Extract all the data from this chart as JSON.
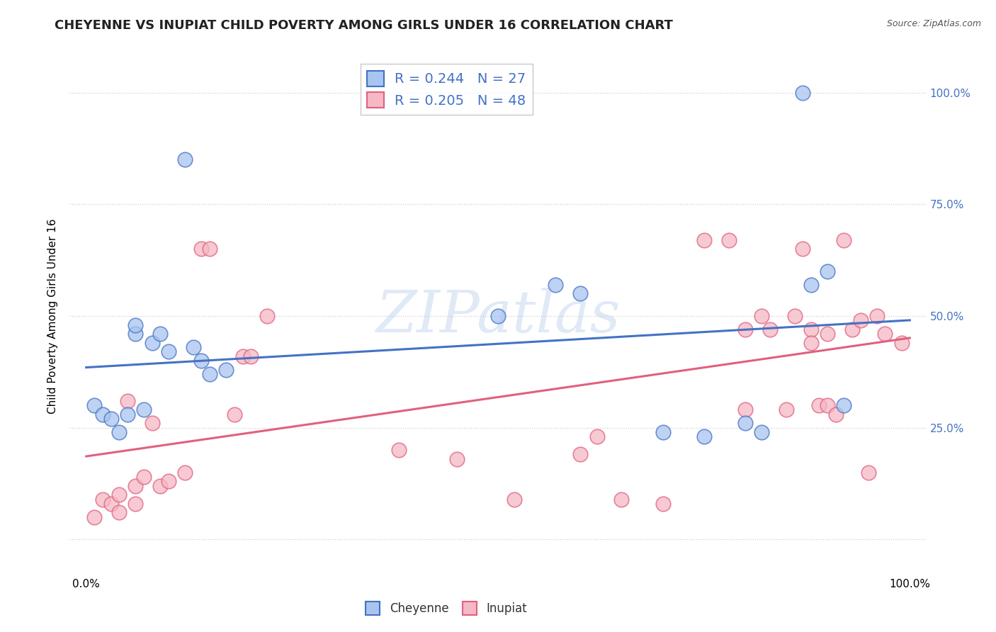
{
  "title": "CHEYENNE VS INUPIAT CHILD POVERTY AMONG GIRLS UNDER 16 CORRELATION CHART",
  "source": "Source: ZipAtlas.com",
  "ylabel": "Child Poverty Among Girls Under 16",
  "watermark": "ZIPatlas",
  "cheyenne_color": "#a8c4f0",
  "cheyenne_color_line": "#4472c4",
  "inupiat_color": "#f5b8c4",
  "inupiat_color_line": "#e06080",
  "cheyenne_R": "0.244",
  "cheyenne_N": "27",
  "inupiat_R": "0.205",
  "inupiat_N": "48",
  "legend_label_cheyenne": "Cheyenne",
  "legend_label_inupiat": "Inupiat",
  "cheyenne_x": [
    0.01,
    0.02,
    0.03,
    0.04,
    0.05,
    0.06,
    0.06,
    0.07,
    0.08,
    0.09,
    0.1,
    0.12,
    0.13,
    0.14,
    0.15,
    0.17,
    0.5,
    0.57,
    0.6,
    0.7,
    0.75,
    0.8,
    0.82,
    0.87,
    0.88,
    0.9,
    0.92
  ],
  "cheyenne_y": [
    0.3,
    0.28,
    0.27,
    0.24,
    0.28,
    0.46,
    0.48,
    0.29,
    0.44,
    0.46,
    0.42,
    0.85,
    0.43,
    0.4,
    0.37,
    0.38,
    0.5,
    0.57,
    0.55,
    0.24,
    0.23,
    0.26,
    0.24,
    1.0,
    0.57,
    0.6,
    0.3
  ],
  "inupiat_x": [
    0.01,
    0.02,
    0.03,
    0.04,
    0.04,
    0.05,
    0.06,
    0.06,
    0.07,
    0.08,
    0.09,
    0.1,
    0.12,
    0.14,
    0.15,
    0.18,
    0.19,
    0.2,
    0.22,
    0.38,
    0.45,
    0.52,
    0.6,
    0.62,
    0.65,
    0.7,
    0.75,
    0.78,
    0.8,
    0.8,
    0.82,
    0.83,
    0.85,
    0.86,
    0.87,
    0.88,
    0.88,
    0.89,
    0.9,
    0.9,
    0.91,
    0.92,
    0.93,
    0.94,
    0.95,
    0.96,
    0.97,
    0.99
  ],
  "inupiat_y": [
    0.05,
    0.09,
    0.08,
    0.06,
    0.1,
    0.31,
    0.08,
    0.12,
    0.14,
    0.26,
    0.12,
    0.13,
    0.15,
    0.65,
    0.65,
    0.28,
    0.41,
    0.41,
    0.5,
    0.2,
    0.18,
    0.09,
    0.19,
    0.23,
    0.09,
    0.08,
    0.67,
    0.67,
    0.29,
    0.47,
    0.5,
    0.47,
    0.29,
    0.5,
    0.65,
    0.47,
    0.44,
    0.3,
    0.46,
    0.3,
    0.28,
    0.67,
    0.47,
    0.49,
    0.15,
    0.5,
    0.46,
    0.44
  ],
  "ytick_labels_right": [
    "100.0%",
    "75.0%",
    "50.0%",
    "25.0%"
  ],
  "ytick_values": [
    0.0,
    0.25,
    0.5,
    0.75,
    1.0
  ],
  "xlim": [
    -0.02,
    1.02
  ],
  "ylim": [
    -0.08,
    1.08
  ],
  "background_color": "#ffffff",
  "grid_color": "#cccccc",
  "title_fontsize": 13,
  "axis_fontsize": 11,
  "source_fontsize": 9,
  "legend_fontsize": 14
}
